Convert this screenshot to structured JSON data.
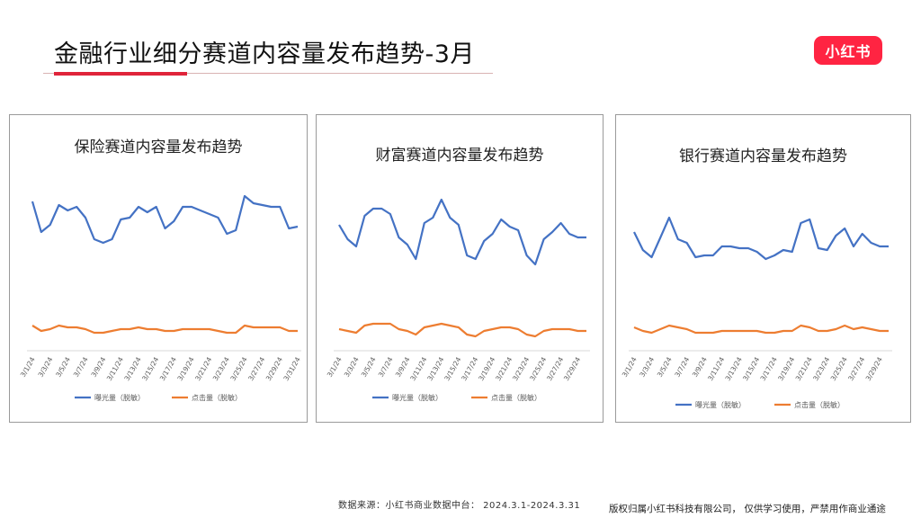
{
  "page": {
    "title": "金融行业细分赛道内容量发布趋势-3月",
    "logo_text": "小红书",
    "footer_source": "数据来源：小红书商业数据中台：  2024.3.1-2024.3.31",
    "footer_copyright": "版权归属小红书科技有限公司，  仅供学习使用，严禁用作商业通途"
  },
  "colors": {
    "blue": "#4472c4",
    "orange": "#ed7d31",
    "accent": "#e0243a",
    "logo": "#ff2442"
  },
  "chart_data": [
    {
      "type": "line",
      "title": "保险赛道内容量发布趋势",
      "categories": [
        "3/1/24",
        "3/2/24",
        "3/3/24",
        "3/4/24",
        "3/5/24",
        "3/6/24",
        "3/7/24",
        "3/8/24",
        "3/9/24",
        "3/10/24",
        "3/11/24",
        "3/12/24",
        "3/13/24",
        "3/14/24",
        "3/15/24",
        "3/16/24",
        "3/17/24",
        "3/18/24",
        "3/19/24",
        "3/20/24",
        "3/21/24",
        "3/22/24",
        "3/23/24",
        "3/24/24",
        "3/25/24",
        "3/26/24",
        "3/27/24",
        "3/28/24",
        "3/29/24",
        "3/30/24",
        "3/31/24"
      ],
      "tick_labels": [
        "3/1/24",
        "3/3/24",
        "3/5/24",
        "3/7/24",
        "3/9/24",
        "3/11/24",
        "3/13/24",
        "3/15/24",
        "3/17/24",
        "3/19/24",
        "3/21/24",
        "3/23/24",
        "3/25/24",
        "3/27/24",
        "3/29/24",
        "3/31/24"
      ],
      "ylim": [
        0,
        100
      ],
      "series": [
        {
          "name": "曝光量（脱敏）",
          "color": "#4472c4",
          "values": [
            83,
            66,
            70,
            81,
            78,
            80,
            74,
            62,
            60,
            62,
            73,
            74,
            80,
            77,
            80,
            68,
            72,
            80,
            80,
            78,
            76,
            74,
            65,
            67,
            86,
            82,
            81,
            80,
            80,
            68,
            69
          ]
        },
        {
          "name": "点击量（脱敏）",
          "color": "#ed7d31",
          "values": [
            14,
            11,
            12,
            14,
            13,
            13,
            12,
            10,
            10,
            11,
            12,
            12,
            13,
            12,
            12,
            11,
            11,
            12,
            12,
            12,
            12,
            11,
            10,
            10,
            14,
            13,
            13,
            13,
            13,
            11,
            11
          ]
        }
      ],
      "legend": "bottom"
    },
    {
      "type": "line",
      "title": "财富赛道内容量发布趋势",
      "categories": [
        "3/1/24",
        "3/2/24",
        "3/3/24",
        "3/4/24",
        "3/5/24",
        "3/6/24",
        "3/7/24",
        "3/8/24",
        "3/9/24",
        "3/10/24",
        "3/11/24",
        "3/12/24",
        "3/13/24",
        "3/14/24",
        "3/15/24",
        "3/16/24",
        "3/17/24",
        "3/18/24",
        "3/19/24",
        "3/20/24",
        "3/21/24",
        "3/22/24",
        "3/23/24",
        "3/24/24",
        "3/25/24",
        "3/26/24",
        "3/27/24",
        "3/28/24",
        "3/29/24",
        "3/30/24"
      ],
      "tick_labels": [
        "3/1/24",
        "3/3/24",
        "3/5/24",
        "3/7/24",
        "3/9/24",
        "3/11/24",
        "3/13/24",
        "3/15/24",
        "3/17/24",
        "3/19/24",
        "3/21/24",
        "3/23/24",
        "3/25/24",
        "3/27/24",
        "3/29/24"
      ],
      "ylim": [
        0,
        100
      ],
      "series": [
        {
          "name": "曝光量（脱敏）",
          "color": "#4472c4",
          "values": [
            70,
            62,
            58,
            75,
            79,
            79,
            76,
            63,
            59,
            51,
            71,
            74,
            84,
            74,
            70,
            53,
            51,
            61,
            65,
            73,
            69,
            67,
            53,
            48,
            62,
            66,
            71,
            65,
            63,
            63
          ]
        },
        {
          "name": "点击量（脱敏）",
          "color": "#ed7d31",
          "values": [
            12,
            11,
            10,
            14,
            15,
            15,
            15,
            12,
            11,
            9,
            13,
            14,
            15,
            14,
            13,
            9,
            8,
            11,
            12,
            13,
            13,
            12,
            9,
            8,
            11,
            12,
            12,
            12,
            11,
            11
          ]
        }
      ],
      "legend": "bottom"
    },
    {
      "type": "line",
      "title": "银行赛道内容量发布趋势",
      "categories": [
        "3/1/24",
        "3/2/24",
        "3/3/24",
        "3/4/24",
        "3/5/24",
        "3/6/24",
        "3/7/24",
        "3/8/24",
        "3/9/24",
        "3/10/24",
        "3/11/24",
        "3/12/24",
        "3/13/24",
        "3/14/24",
        "3/15/24",
        "3/16/24",
        "3/17/24",
        "3/18/24",
        "3/19/24",
        "3/20/24",
        "3/21/24",
        "3/22/24",
        "3/23/24",
        "3/24/24",
        "3/25/24",
        "3/26/24",
        "3/27/24",
        "3/28/24",
        "3/29/24",
        "3/30/24"
      ],
      "tick_labels": [
        "3/1/24",
        "3/3/24",
        "3/5/24",
        "3/7/24",
        "3/9/24",
        "3/11/24",
        "3/13/24",
        "3/15/24",
        "3/17/24",
        "3/19/24",
        "3/21/24",
        "3/23/24",
        "3/25/24",
        "3/27/24",
        "3/29/24"
      ],
      "ylim": [
        0,
        100
      ],
      "series": [
        {
          "name": "曝光量（脱敏）",
          "color": "#4472c4",
          "values": [
            66,
            56,
            52,
            63,
            74,
            62,
            60,
            52,
            53,
            53,
            58,
            58,
            57,
            57,
            55,
            51,
            53,
            56,
            55,
            71,
            73,
            57,
            56,
            64,
            68,
            58,
            65,
            60,
            58,
            58
          ]
        },
        {
          "name": "点击量（脱敏）",
          "color": "#ed7d31",
          "values": [
            13,
            11,
            10,
            12,
            14,
            13,
            12,
            10,
            10,
            10,
            11,
            11,
            11,
            11,
            11,
            10,
            10,
            11,
            11,
            14,
            13,
            11,
            11,
            12,
            14,
            12,
            13,
            12,
            11,
            11
          ]
        }
      ],
      "legend": "bottom"
    }
  ]
}
